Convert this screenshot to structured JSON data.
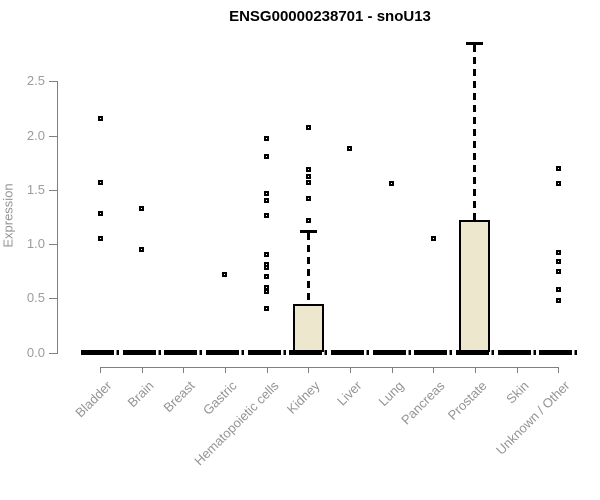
{
  "header": {
    "title": "ENSG00000238701 - snoU13"
  },
  "chart_data": {
    "type": "box",
    "title": "ENSG00000238701 - snoU13",
    "xlabel": "",
    "ylabel": "Expression",
    "yticks": [
      0.0,
      0.5,
      1.0,
      1.5,
      2.0,
      2.5
    ],
    "ylim": [
      0,
      2.9
    ],
    "grid": false,
    "legend": false,
    "marker_style": "open-square",
    "colors": {
      "box_fill": "#ECE7CD",
      "box_border": "#000000",
      "whisker": "#000000",
      "median": "#000000",
      "axis": "#808080",
      "tick_label": "#9b9b9b",
      "title": "#000000"
    },
    "categories": [
      "Bladder",
      "Brain",
      "Breast",
      "Gastric",
      "Hematopoietic cells",
      "Kidney",
      "Liver",
      "Lung",
      "Pancreas",
      "Prostate",
      "Skin",
      "Unknown / Other"
    ],
    "boxes": [
      {
        "label": "Bladder",
        "median": 0,
        "q1": 0,
        "q3": 0,
        "whisker_low": 0,
        "whisker_high": 0,
        "outliers": [
          2.16,
          1.57,
          1.28,
          1.05
        ]
      },
      {
        "label": "Brain",
        "median": 0,
        "q1": 0,
        "q3": 0,
        "whisker_low": 0,
        "whisker_high": 0,
        "outliers": [
          1.33,
          0.95
        ]
      },
      {
        "label": "Breast",
        "median": 0,
        "q1": 0,
        "q3": 0,
        "whisker_low": 0,
        "whisker_high": 0,
        "outliers": []
      },
      {
        "label": "Gastric",
        "median": 0,
        "q1": 0,
        "q3": 0,
        "whisker_low": 0,
        "whisker_high": 0,
        "outliers": [
          0.72
        ]
      },
      {
        "label": "Hematopoietic cells",
        "median": 0,
        "q1": 0,
        "q3": 0,
        "whisker_low": 0,
        "whisker_high": 0,
        "outliers": [
          1.97,
          1.81,
          1.47,
          1.4,
          1.26,
          0.9,
          0.81,
          0.78,
          0.7,
          0.6,
          0.56,
          0.41
        ]
      },
      {
        "label": "Kidney",
        "median": 0,
        "q1": 0,
        "q3": 0.45,
        "whisker_low": 0,
        "whisker_high": 1.12,
        "outliers": [
          2.07,
          1.69,
          1.62,
          1.57,
          1.42,
          1.22
        ]
      },
      {
        "label": "Liver",
        "median": 0,
        "q1": 0,
        "q3": 0,
        "whisker_low": 0,
        "whisker_high": 0,
        "outliers": [
          1.88
        ]
      },
      {
        "label": "Lung",
        "median": 0,
        "q1": 0,
        "q3": 0,
        "whisker_low": 0,
        "whisker_high": 0,
        "outliers": [
          1.56
        ]
      },
      {
        "label": "Pancreas",
        "median": 0,
        "q1": 0,
        "q3": 0,
        "whisker_low": 0,
        "whisker_high": 0,
        "outliers": [
          1.05
        ]
      },
      {
        "label": "Prostate",
        "median": 0,
        "q1": 0,
        "q3": 1.22,
        "whisker_low": 0,
        "whisker_high": 2.85,
        "outliers": []
      },
      {
        "label": "Skin",
        "median": 0,
        "q1": 0,
        "q3": 0,
        "whisker_low": 0,
        "whisker_high": 0,
        "outliers": []
      },
      {
        "label": "Unknown / Other",
        "median": 0,
        "q1": 0,
        "q3": 0,
        "whisker_low": 0,
        "whisker_high": 0,
        "outliers": [
          1.7,
          1.56,
          0.92,
          0.84,
          0.75,
          0.58,
          0.48
        ]
      }
    ]
  }
}
